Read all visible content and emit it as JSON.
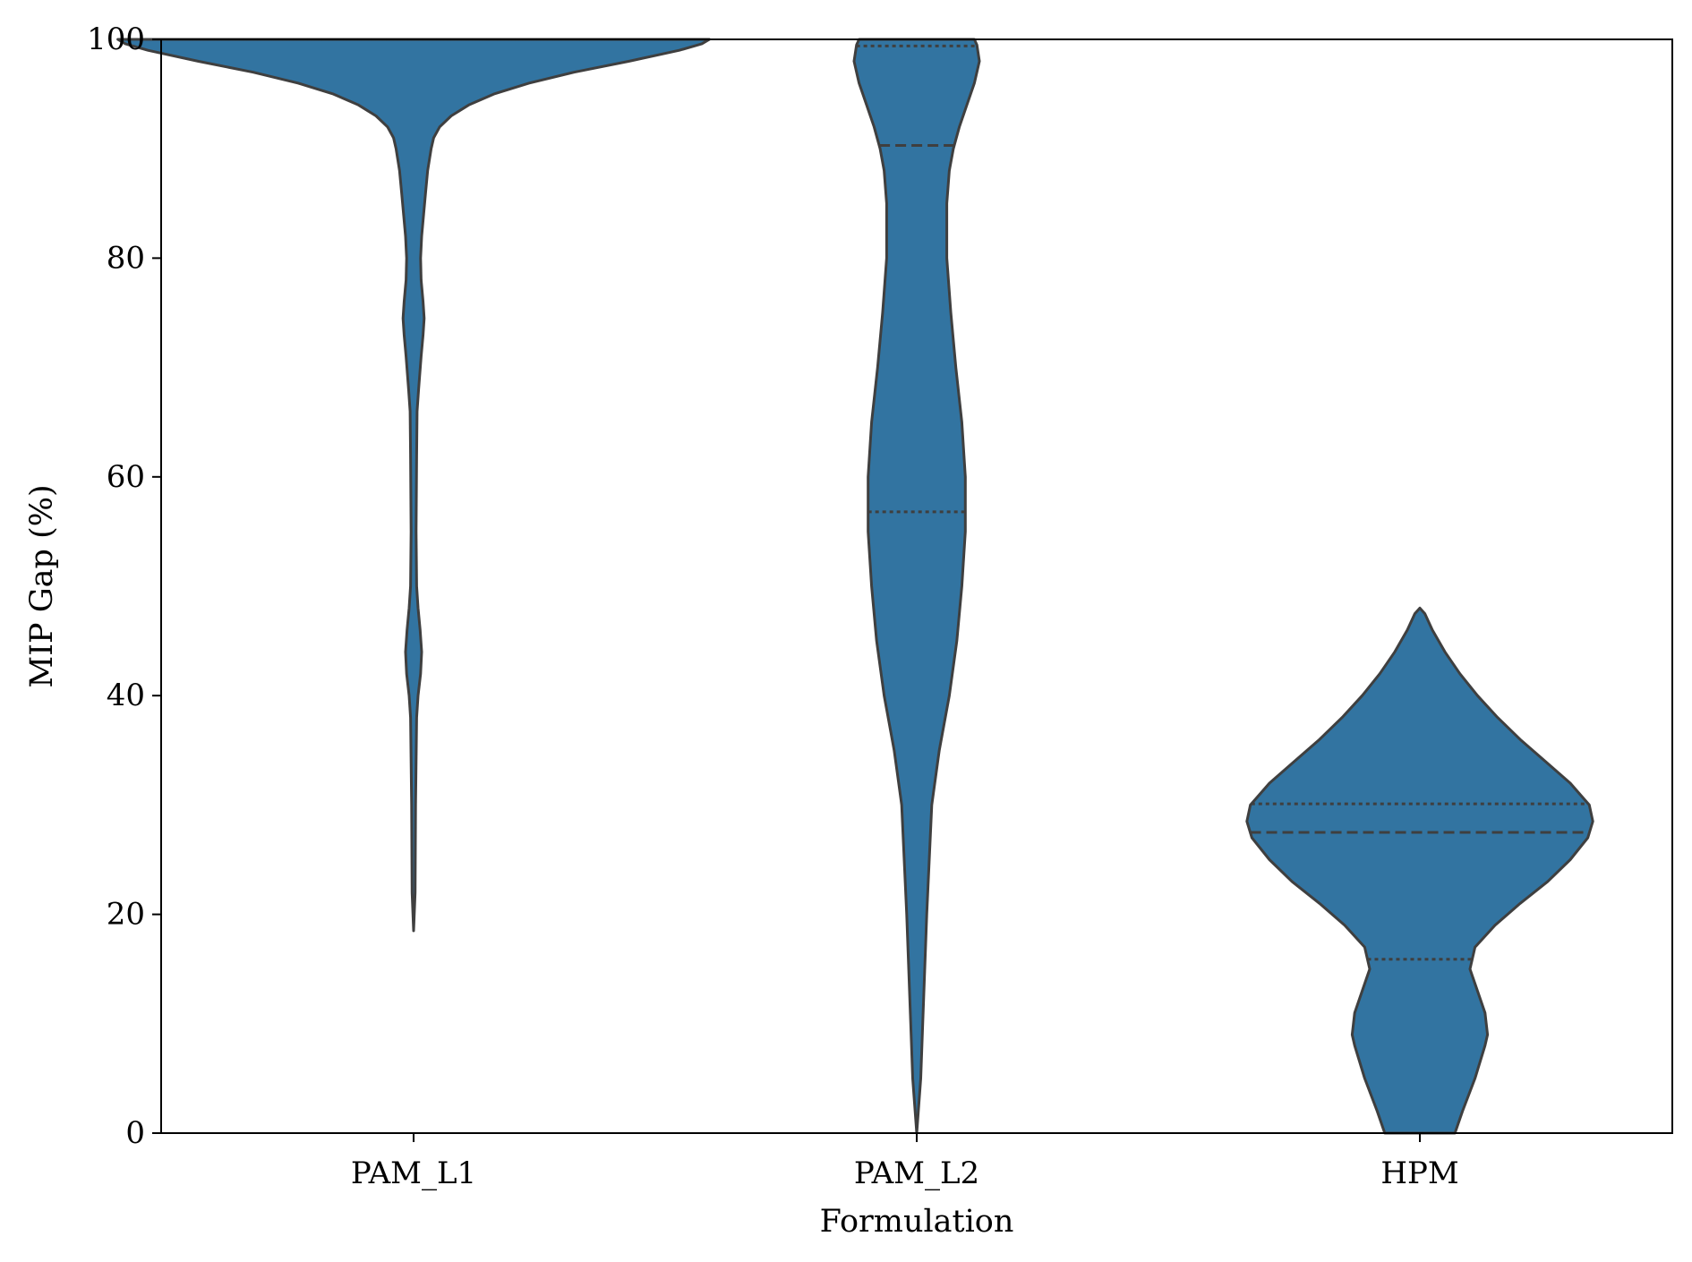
{
  "chart_data": {
    "type": "violin",
    "title": "",
    "xlabel": "Formulation",
    "ylabel": "MIP Gap (%)",
    "ylim": [
      0,
      100
    ],
    "yticks": [
      0,
      20,
      40,
      60,
      80,
      100
    ],
    "grid": false,
    "legend": "none",
    "color": "#3274a1",
    "edge_color": "#3f3f3f",
    "categories": [
      "PAM_L1",
      "PAM_L2",
      "HPM"
    ],
    "violins": [
      {
        "category": "PAM_L1",
        "min": 18.5,
        "max": 100,
        "quartiles": {
          "q1": 100,
          "median": 100,
          "q3": 100
        },
        "density_profile": [
          [
            18.5,
            0.0
          ],
          [
            22,
            0.003
          ],
          [
            30,
            0.004
          ],
          [
            38,
            0.006
          ],
          [
            40,
            0.009
          ],
          [
            42,
            0.014
          ],
          [
            44,
            0.016
          ],
          [
            46,
            0.013
          ],
          [
            48,
            0.009
          ],
          [
            50,
            0.006
          ],
          [
            55,
            0.005
          ],
          [
            62,
            0.006
          ],
          [
            66,
            0.007
          ],
          [
            68,
            0.01
          ],
          [
            71,
            0.015
          ],
          [
            73,
            0.019
          ],
          [
            74.5,
            0.021
          ],
          [
            76,
            0.019
          ],
          [
            78,
            0.015
          ],
          [
            80,
            0.014
          ],
          [
            82,
            0.016
          ],
          [
            84,
            0.02
          ],
          [
            86,
            0.024
          ],
          [
            88,
            0.028
          ],
          [
            90,
            0.035
          ],
          [
            91,
            0.04
          ],
          [
            92,
            0.052
          ],
          [
            93,
            0.075
          ],
          [
            94,
            0.11
          ],
          [
            95,
            0.16
          ],
          [
            96,
            0.23
          ],
          [
            97,
            0.32
          ],
          [
            98,
            0.43
          ],
          [
            99,
            0.53
          ],
          [
            99.6,
            0.575
          ],
          [
            100,
            0.59
          ]
        ]
      },
      {
        "category": "PAM_L2",
        "min": 0,
        "max": 100,
        "quartiles": {
          "q1": 56.8,
          "median": 90.3,
          "q3": 99.4
        },
        "density_profile": [
          [
            0,
            0.0
          ],
          [
            5,
            0.008
          ],
          [
            10,
            0.012
          ],
          [
            20,
            0.02
          ],
          [
            25,
            0.025
          ],
          [
            30,
            0.03
          ],
          [
            35,
            0.045
          ],
          [
            40,
            0.065
          ],
          [
            45,
            0.08
          ],
          [
            50,
            0.09
          ],
          [
            55,
            0.097
          ],
          [
            60,
            0.097
          ],
          [
            65,
            0.09
          ],
          [
            70,
            0.078
          ],
          [
            75,
            0.068
          ],
          [
            80,
            0.06
          ],
          [
            85,
            0.06
          ],
          [
            88,
            0.065
          ],
          [
            90,
            0.073
          ],
          [
            92,
            0.085
          ],
          [
            94,
            0.1
          ],
          [
            96,
            0.115
          ],
          [
            98,
            0.125
          ],
          [
            99.5,
            0.12
          ],
          [
            100,
            0.115
          ]
        ]
      },
      {
        "category": "HPM",
        "min": 0,
        "max": 48,
        "quartiles": {
          "q1": 15.9,
          "median": 27.5,
          "q3": 30.1
        },
        "density_profile": [
          [
            0,
            0.07
          ],
          [
            2,
            0.085
          ],
          [
            5,
            0.11
          ],
          [
            8,
            0.13
          ],
          [
            9,
            0.135
          ],
          [
            11,
            0.13
          ],
          [
            13,
            0.115
          ],
          [
            15,
            0.1
          ],
          [
            17,
            0.11
          ],
          [
            19,
            0.15
          ],
          [
            21,
            0.2
          ],
          [
            23,
            0.255
          ],
          [
            25,
            0.3
          ],
          [
            27,
            0.335
          ],
          [
            28.5,
            0.345
          ],
          [
            30,
            0.338
          ],
          [
            32,
            0.3
          ],
          [
            34,
            0.25
          ],
          [
            36,
            0.2
          ],
          [
            38,
            0.155
          ],
          [
            40,
            0.115
          ],
          [
            42,
            0.08
          ],
          [
            44,
            0.05
          ],
          [
            46,
            0.025
          ],
          [
            47.5,
            0.01
          ],
          [
            48,
            0.0
          ]
        ]
      }
    ]
  }
}
